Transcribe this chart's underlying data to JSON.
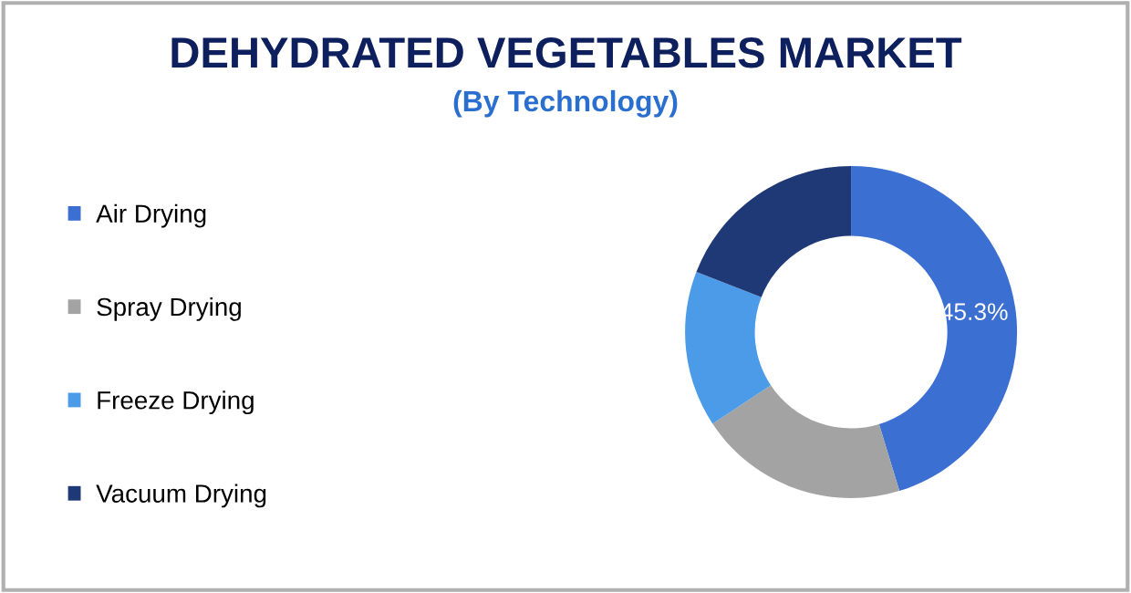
{
  "chart_data": {
    "type": "donut",
    "title": "DEHYDRATED VEGETABLES MARKET",
    "subtitle": "(By Technology)",
    "categories": [
      "Air Drying",
      "Spray Drying",
      "Freeze Drying",
      "Vacuum Drying"
    ],
    "values": [
      45.3,
      20.4,
      15.2,
      19.1
    ],
    "colors": [
      "#3b6fd2",
      "#a3a3a3",
      "#4b9be8",
      "#1f3876"
    ],
    "value_labels": [
      "45.3%",
      null,
      null,
      null
    ],
    "legend": "left"
  }
}
